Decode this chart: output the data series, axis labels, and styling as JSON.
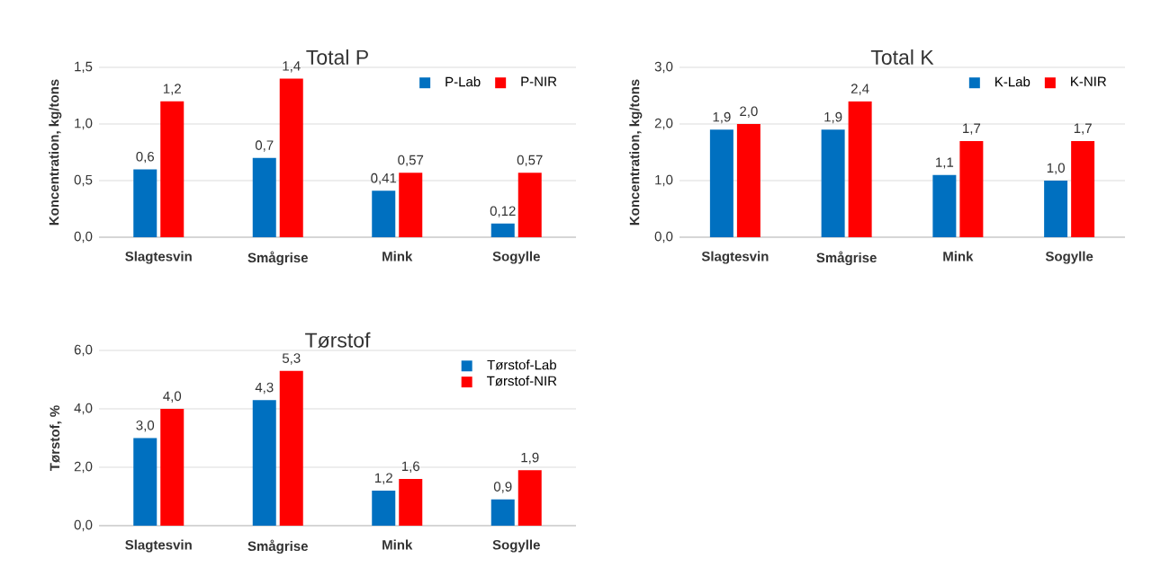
{
  "chart_data": [
    {
      "type": "bar",
      "title": "Total P",
      "ylabel": "Koncentration, kg/tons",
      "categories": [
        "Slagtesvin",
        "Smågrise",
        "Mink",
        "Sogylle"
      ],
      "series": [
        {
          "name": "P-Lab",
          "color": "#0070c0",
          "values": [
            0.6,
            0.7,
            0.41,
            0.12
          ],
          "value_labels": [
            "0,6",
            "0,7",
            "0,41",
            "0,12"
          ]
        },
        {
          "name": "P-NIR",
          "color": "#ff0000",
          "values": [
            1.2,
            1.4,
            0.57,
            0.57
          ],
          "value_labels": [
            "1,2",
            "1,4",
            "0,57",
            "0,57"
          ]
        }
      ],
      "ylim": [
        0,
        1.5
      ],
      "yticks": [
        {
          "value": 0,
          "label": "0,0"
        },
        {
          "value": 0.5,
          "label": "0,5"
        },
        {
          "value": 1,
          "label": "1,0"
        },
        {
          "value": 1.5,
          "label": "1,5"
        }
      ],
      "grid": "y",
      "legend": "top right"
    },
    {
      "type": "bar",
      "title": "Total K",
      "ylabel": "Koncentration, kg/tons",
      "categories": [
        "Slagtesvin",
        "Smågrise",
        "Mink",
        "Sogylle"
      ],
      "series": [
        {
          "name": "K-Lab",
          "color": "#0070c0",
          "values": [
            1.9,
            1.9,
            1.1,
            1.0
          ],
          "value_labels": [
            "1,9",
            "1,9",
            "1,1",
            "1,0"
          ]
        },
        {
          "name": "K-NIR",
          "color": "#ff0000",
          "values": [
            2.0,
            2.4,
            1.7,
            1.7
          ],
          "value_labels": [
            "2,0",
            "2,4",
            "1,7",
            "1,7"
          ]
        }
      ],
      "ylim": [
        0,
        3
      ],
      "yticks": [
        {
          "value": 0,
          "label": "0,0"
        },
        {
          "value": 1,
          "label": "1,0"
        },
        {
          "value": 2,
          "label": "2,0"
        },
        {
          "value": 3,
          "label": "3,0"
        }
      ],
      "grid": "y",
      "legend": "top right"
    },
    {
      "type": "bar",
      "title": "Tørstof",
      "ylabel": "Tørstof, %",
      "categories": [
        "Slagtesvin",
        "Smågrise",
        "Mink",
        "Sogylle"
      ],
      "series": [
        {
          "name": "Tørstof-Lab",
          "color": "#0070c0",
          "values": [
            3.0,
            4.3,
            1.2,
            0.9
          ],
          "value_labels": [
            "3,0",
            "4,3",
            "1,2",
            "0,9"
          ]
        },
        {
          "name": "Tørstof-NIR",
          "color": "#ff0000",
          "values": [
            4.0,
            5.3,
            1.6,
            1.9
          ],
          "value_labels": [
            "4,0",
            "5,3",
            "1,6",
            "1,9"
          ]
        }
      ],
      "ylim": [
        0,
        6
      ],
      "yticks": [
        {
          "value": 0,
          "label": "0,0"
        },
        {
          "value": 2,
          "label": "2,0"
        },
        {
          "value": 4,
          "label": "4,0"
        },
        {
          "value": 6,
          "label": "6,0"
        }
      ],
      "grid": "y",
      "legend": "top right"
    }
  ]
}
